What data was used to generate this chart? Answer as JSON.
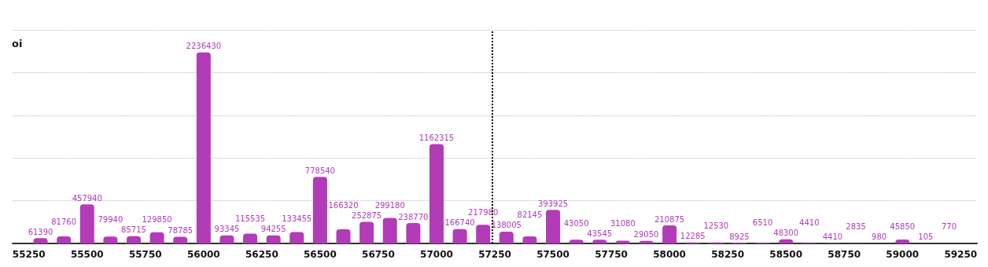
{
  "chart_data": {
    "type": "bar",
    "ylabel": "oi",
    "x": [
      55300,
      55400,
      55500,
      55600,
      55700,
      55800,
      55900,
      56000,
      56100,
      56200,
      56300,
      56400,
      56500,
      56600,
      56700,
      56800,
      56900,
      57000,
      57100,
      57200,
      57300,
      57400,
      57500,
      57600,
      57700,
      57800,
      57900,
      58000,
      58100,
      58200,
      58300,
      58400,
      58500,
      58600,
      58700,
      58800,
      58900,
      59000,
      59100,
      59200
    ],
    "values": [
      61390,
      81760,
      457940,
      79940,
      85715,
      129850,
      78785,
      2236430,
      93345,
      115535,
      94255,
      133455,
      778540,
      166320,
      252875,
      299180,
      238770,
      1162315,
      166740,
      217980,
      138005,
      82145,
      393925,
      43050,
      43545,
      31080,
      29050,
      210875,
      12285,
      12530,
      8925,
      6510,
      48300,
      4410,
      4410,
      2835,
      980,
      45850,
      105,
      770
    ],
    "color": "#b23bb8",
    "data_labels": true,
    "xlim": [
      55180,
      59320
    ],
    "xticks": [
      55250,
      55500,
      55750,
      56000,
      56250,
      56500,
      56750,
      57000,
      57250,
      57500,
      57750,
      58000,
      58250,
      58500,
      58750,
      59000,
      59250
    ],
    "ylim": [
      0,
      2500000
    ],
    "yticks": [
      0,
      500000,
      1000000,
      1500000,
      2000000,
      2500000
    ],
    "tick_labels": "x",
    "grid": "y",
    "ref_lines": [
      {
        "axis": "x",
        "value": 57240,
        "color": "#000000",
        "line_style": "dotted"
      }
    ]
  }
}
